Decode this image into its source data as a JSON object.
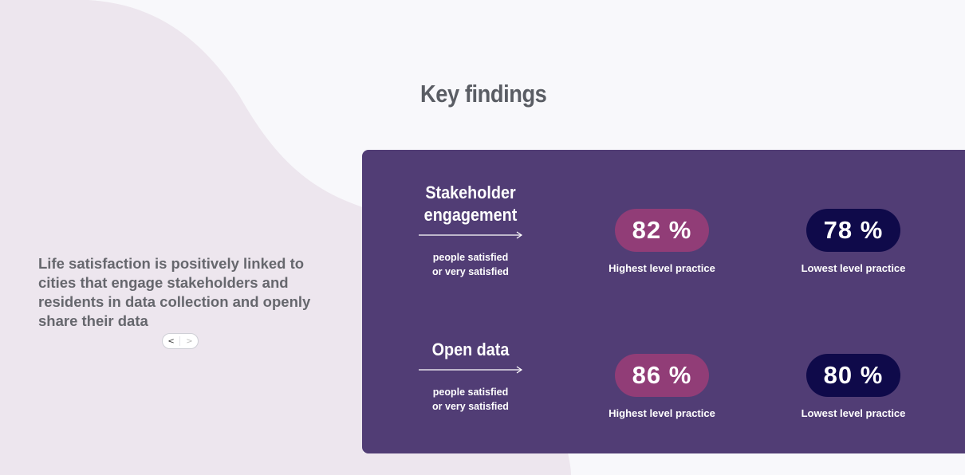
{
  "title": "Key findings",
  "summary": "Life satisfaction is positively linked to cities that engage stakeholders and residents in data collection and openly share their data",
  "pager": {
    "prev": "<",
    "next": ">"
  },
  "rows": [
    {
      "name_line1": "Stakeholder",
      "name_line2": "engagement",
      "caption_line1": "people satisfied",
      "caption_line2": "or very satisfied",
      "high_value": "82 %",
      "high_label": "Highest level practice",
      "low_value": "78 %",
      "low_label": "Lowest level practice"
    },
    {
      "name_line1": "Open data",
      "name_line2": "",
      "caption_line1": "people satisfied",
      "caption_line2": "or very satisfied",
      "high_value": "86 %",
      "high_label": "Highest level practice",
      "low_value": "80 %",
      "low_label": "Lowest level practice"
    }
  ],
  "colors": {
    "background": "#f8f8fb",
    "blob": "#ede6ee",
    "panel": "#513d75",
    "high_pill": "#913d77",
    "low_pill": "#0f0a4a",
    "heading": "#5a5d64",
    "summary_text": "#66676d"
  },
  "icons": {
    "arrow": "arrow-right-icon"
  }
}
